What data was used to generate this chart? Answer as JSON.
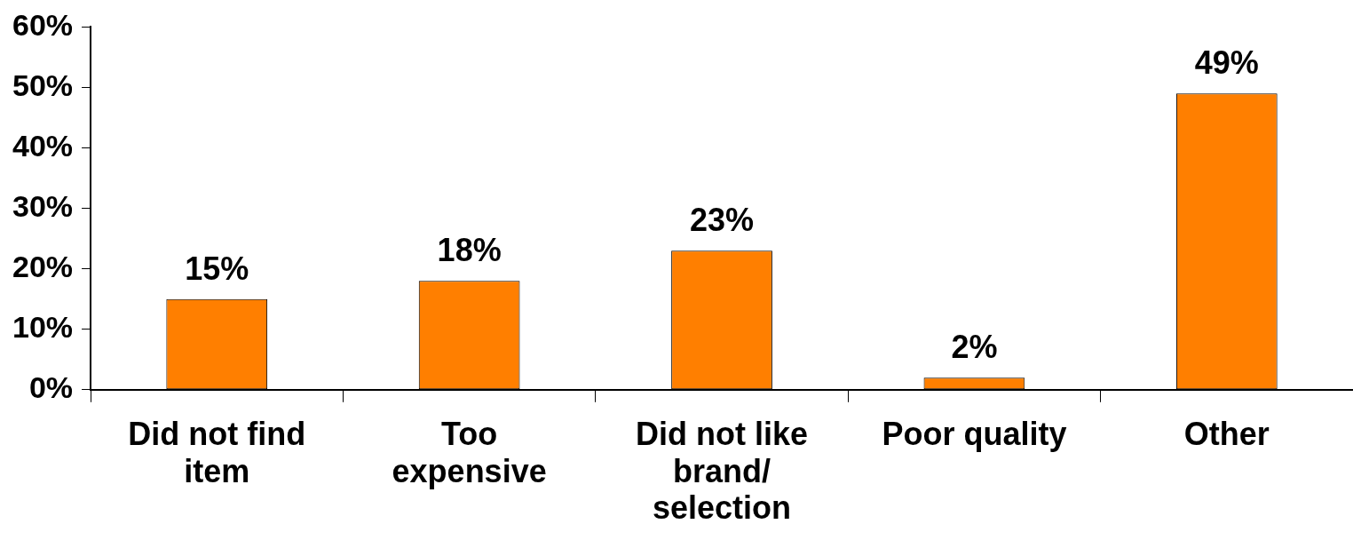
{
  "chart_data": {
    "type": "bar",
    "categories": [
      "Did not find\nitem",
      "Too\nexpensive",
      "Did not like\nbrand/\nselection",
      "Poor quality",
      "Other"
    ],
    "values": [
      15,
      18,
      23,
      2,
      49
    ],
    "color": "#ff7f00",
    "ylim": [
      0,
      60
    ],
    "yticks": [
      {
        "value": 0,
        "label": "0%"
      },
      {
        "value": 10,
        "label": "10%"
      },
      {
        "value": 20,
        "label": "20%"
      },
      {
        "value": 30,
        "label": "30%"
      },
      {
        "value": 40,
        "label": "40%"
      },
      {
        "value": 50,
        "label": "50%"
      },
      {
        "value": 60,
        "label": "60%"
      }
    ],
    "value_labels": [
      "15%",
      "18%",
      "23%",
      "2%",
      "49%"
    ],
    "legend": false
  }
}
